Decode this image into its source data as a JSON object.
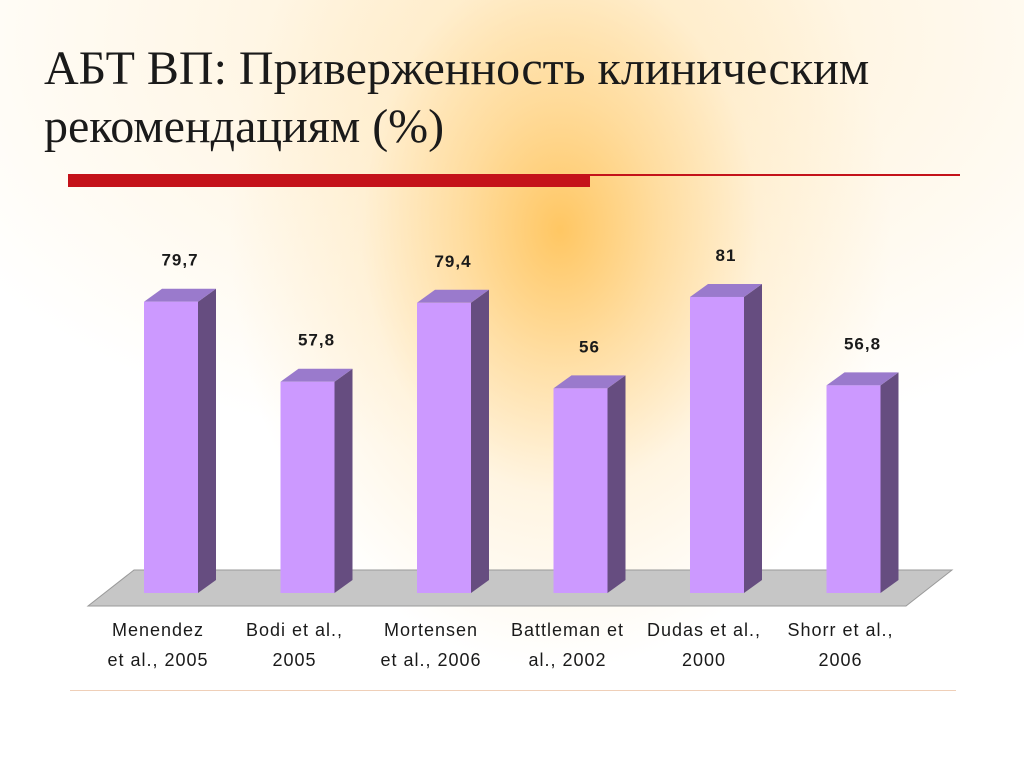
{
  "slide": {
    "title": "АБТ ВП: Приверженность клиническим рекомендациям (%)"
  },
  "colors": {
    "bar_front": "#cc99ff",
    "bar_side": "#664d80",
    "bar_top": "#9a7acc",
    "floor": "#c6c6c6",
    "accent_rule": "#c4121a"
  },
  "chart_data": {
    "type": "bar",
    "style": "3d-column",
    "categories": [
      [
        "Menendez",
        "et al., 2005"
      ],
      [
        "Bodi et al.,",
        "2005"
      ],
      [
        "Mortensen",
        "et al., 2006"
      ],
      [
        "Battleman et",
        "al., 2002"
      ],
      [
        "Dudas  et al.,",
        "2000"
      ],
      [
        "Shorr et al.,",
        "2006"
      ]
    ],
    "values": [
      79.7,
      57.8,
      79.4,
      56,
      81,
      56.8
    ],
    "data_labels": [
      "79,7",
      "57,8",
      "79,4",
      "56",
      "81",
      "56,8"
    ],
    "grid": false,
    "legend": "none"
  }
}
